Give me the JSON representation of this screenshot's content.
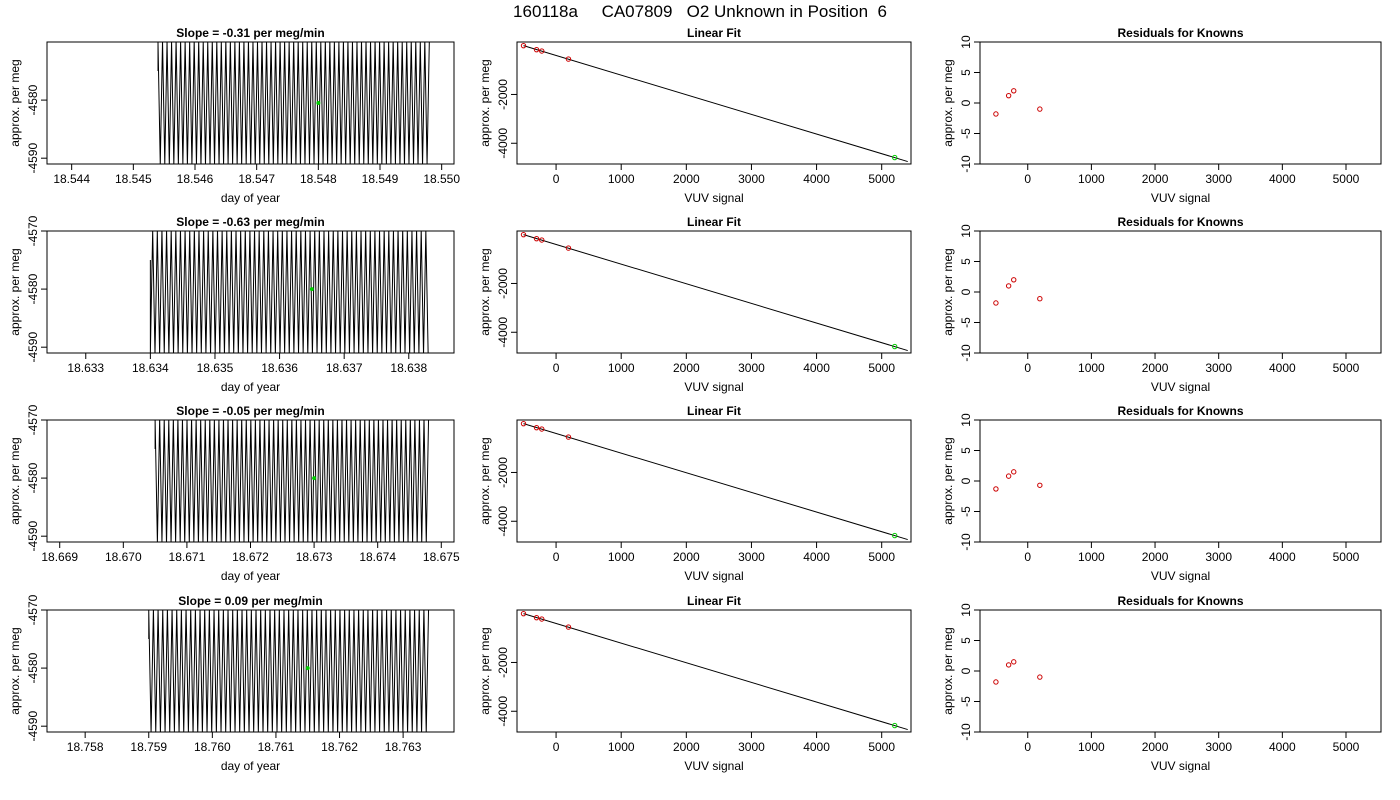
{
  "figure_title": "160118a     CA07809   O2 Unknown in Position  6",
  "colors": {
    "trace": "#000000",
    "marker_red": "#cc0000",
    "marker_green": "#00cc00",
    "axis": "#000000"
  },
  "chart_data": [
    {
      "type": "line",
      "panel": "time-series-1",
      "title": "Slope =  -0.31  per meg/min",
      "xlabel": "day of year",
      "ylabel": "approx. per meg",
      "xlim": [
        18.5436,
        18.5502
      ],
      "ylim": [
        -4591,
        -4570
      ],
      "xticks": [
        18.544,
        18.545,
        18.546,
        18.547,
        18.548,
        18.549,
        18.55
      ],
      "xtick_labels": [
        "18.544",
        "18.545",
        "18.546",
        "18.547",
        "18.548",
        "18.549",
        "18.550"
      ],
      "yticks": [
        -4580,
        -4590
      ],
      "ytick_labels": [
        "-4580",
        "-4590"
      ],
      "trace": {
        "x_start": 18.5454,
        "x_end": 18.5498,
        "y_min": -4591,
        "y_max": -4570,
        "cycles": 60,
        "start_offset": 0.45
      },
      "highlight_point": {
        "x": 18.548,
        "y": -4580.5
      }
    },
    {
      "type": "scatter",
      "panel": "linear-fit-1",
      "title": "Linear Fit",
      "xlabel": "VUV signal",
      "ylabel": "approx. per meg",
      "xlim": [
        -600,
        5450
      ],
      "ylim": [
        -4850,
        150
      ],
      "xticks": [
        0,
        1000,
        2000,
        3000,
        4000,
        5000
      ],
      "xtick_labels": [
        "0",
        "1000",
        "2000",
        "3000",
        "4000",
        "5000"
      ],
      "yticks": [
        -2000,
        -4000
      ],
      "ytick_labels": [
        "-2000",
        "-4000"
      ],
      "fit_line": {
        "x": [
          -500,
          5400
        ],
        "y": [
          0,
          -4750
        ]
      },
      "knowns": {
        "x": [
          -500,
          -300,
          -220,
          190
        ],
        "y": [
          0,
          -165,
          -220,
          -550
        ]
      },
      "unknown": {
        "x": 5200,
        "y": -4585
      }
    },
    {
      "type": "scatter",
      "panel": "residuals-1",
      "title": "Residuals for Knowns",
      "xlabel": "VUV signal",
      "ylabel": "approx. per meg",
      "xlim": [
        -750,
        5550
      ],
      "ylim": [
        -10,
        10
      ],
      "xticks": [
        0,
        1000,
        2000,
        3000,
        4000,
        5000
      ],
      "xtick_labels": [
        "0",
        "1000",
        "2000",
        "3000",
        "4000",
        "5000"
      ],
      "yticks": [
        10,
        5,
        0,
        -5,
        -10
      ],
      "ytick_labels": [
        "10",
        "5",
        "0",
        "-5",
        "-10"
      ],
      "x": [
        -500,
        -300,
        -220,
        190
      ],
      "y": [
        -1.8,
        1.2,
        2.0,
        -1.0
      ]
    },
    {
      "type": "line",
      "panel": "time-series-2",
      "title": "Slope =  -0.63  per meg/min",
      "xlabel": "day of year",
      "ylabel": "approx. per meg",
      "xlim": [
        18.6324,
        18.6387
      ],
      "ylim": [
        -4591,
        -4570
      ],
      "xticks": [
        18.633,
        18.634,
        18.635,
        18.636,
        18.637,
        18.638
      ],
      "xtick_labels": [
        "18.633",
        "18.634",
        "18.635",
        "18.636",
        "18.637",
        "18.638"
      ],
      "yticks": [
        -4570,
        -4580,
        -4590
      ],
      "ytick_labels": [
        "-4570",
        "-4580",
        "-4590"
      ],
      "trace": {
        "x_start": 18.634,
        "x_end": 18.6383,
        "y_min": -4591,
        "y_max": -4570,
        "cycles": 60,
        "start_offset": 0.6
      },
      "highlight_point": {
        "x": 18.6365,
        "y": -4580
      }
    },
    {
      "type": "scatter",
      "panel": "linear-fit-2",
      "title": "Linear Fit",
      "xlabel": "VUV signal",
      "ylabel": "approx. per meg",
      "xlim": [
        -600,
        5450
      ],
      "ylim": [
        -4850,
        150
      ],
      "xticks": [
        0,
        1000,
        2000,
        3000,
        4000,
        5000
      ],
      "xtick_labels": [
        "0",
        "1000",
        "2000",
        "3000",
        "4000",
        "5000"
      ],
      "yticks": [
        -2000,
        -4000
      ],
      "ytick_labels": [
        "-2000",
        "-4000"
      ],
      "fit_line": {
        "x": [
          -500,
          5400
        ],
        "y": [
          0,
          -4750
        ]
      },
      "knowns": {
        "x": [
          -500,
          -300,
          -220,
          190
        ],
        "y": [
          0,
          -165,
          -220,
          -550
        ]
      },
      "unknown": {
        "x": 5200,
        "y": -4585
      }
    },
    {
      "type": "scatter",
      "panel": "residuals-2",
      "title": "Residuals for Knowns",
      "xlabel": "VUV signal",
      "ylabel": "approx. per meg",
      "xlim": [
        -750,
        5550
      ],
      "ylim": [
        -10,
        10
      ],
      "xticks": [
        0,
        1000,
        2000,
        3000,
        4000,
        5000
      ],
      "xtick_labels": [
        "0",
        "1000",
        "2000",
        "3000",
        "4000",
        "5000"
      ],
      "yticks": [
        10,
        5,
        0,
        -5,
        -10
      ],
      "ytick_labels": [
        "10",
        "5",
        "0",
        "-5",
        "-10"
      ],
      "x": [
        -500,
        -300,
        -220,
        190
      ],
      "y": [
        -1.8,
        1.0,
        2.0,
        -1.1
      ]
    },
    {
      "type": "line",
      "panel": "time-series-3",
      "title": "Slope =  -0.05  per meg/min",
      "xlabel": "day of year",
      "ylabel": "approx. per meg",
      "xlim": [
        18.6688,
        18.6752
      ],
      "ylim": [
        -4591,
        -4570
      ],
      "xticks": [
        18.669,
        18.67,
        18.671,
        18.672,
        18.673,
        18.674,
        18.675
      ],
      "xtick_labels": [
        "18.669",
        "18.670",
        "18.671",
        "18.672",
        "18.673",
        "18.674",
        "18.675"
      ],
      "yticks": [
        -4570,
        -4580,
        -4590
      ],
      "ytick_labels": [
        "-4570",
        "-4580",
        "-4590"
      ],
      "trace": {
        "x_start": 18.6705,
        "x_end": 18.6748,
        "y_min": -4591,
        "y_max": -4570,
        "cycles": 60,
        "start_offset": 0.2
      },
      "highlight_point": {
        "x": 18.673,
        "y": -4580
      }
    },
    {
      "type": "scatter",
      "panel": "linear-fit-3",
      "title": "Linear Fit",
      "xlabel": "VUV signal",
      "ylabel": "approx. per meg",
      "xlim": [
        -600,
        5450
      ],
      "ylim": [
        -4850,
        150
      ],
      "xticks": [
        0,
        1000,
        2000,
        3000,
        4000,
        5000
      ],
      "xtick_labels": [
        "0",
        "1000",
        "2000",
        "3000",
        "4000",
        "5000"
      ],
      "yticks": [
        -2000,
        -4000
      ],
      "ytick_labels": [
        "-2000",
        "-4000"
      ],
      "fit_line": {
        "x": [
          -500,
          5400
        ],
        "y": [
          0,
          -4750
        ]
      },
      "knowns": {
        "x": [
          -500,
          -300,
          -220,
          190
        ],
        "y": [
          0,
          -165,
          -220,
          -550
        ]
      },
      "unknown": {
        "x": 5200,
        "y": -4585
      }
    },
    {
      "type": "scatter",
      "panel": "residuals-3",
      "title": "Residuals for Knowns",
      "xlabel": "VUV signal",
      "ylabel": "approx. per meg",
      "xlim": [
        -750,
        5550
      ],
      "ylim": [
        -10,
        10
      ],
      "xticks": [
        0,
        1000,
        2000,
        3000,
        4000,
        5000
      ],
      "xtick_labels": [
        "0",
        "1000",
        "2000",
        "3000",
        "4000",
        "5000"
      ],
      "yticks": [
        10,
        5,
        0,
        -5,
        -10
      ],
      "ytick_labels": [
        "10",
        "5",
        "0",
        "-5",
        "-10"
      ],
      "x": [
        -500,
        -300,
        -220,
        190
      ],
      "y": [
        -1.3,
        0.8,
        1.5,
        -0.7
      ]
    },
    {
      "type": "line",
      "panel": "time-series-4",
      "title": "Slope =  0.09  per meg/min",
      "xlabel": "day of year",
      "ylabel": "approx. per meg",
      "xlim": [
        18.7574,
        18.7638
      ],
      "ylim": [
        -4591,
        -4570
      ],
      "xticks": [
        18.758,
        18.759,
        18.76,
        18.761,
        18.762,
        18.763
      ],
      "xtick_labels": [
        "18.758",
        "18.759",
        "18.760",
        "18.761",
        "18.762",
        "18.763"
      ],
      "yticks": [
        -4570,
        -4580,
        -4590
      ],
      "ytick_labels": [
        "-4570",
        "-4580",
        "-4590"
      ],
      "trace": {
        "x_start": 18.759,
        "x_end": 18.7634,
        "y_min": -4591,
        "y_max": -4570,
        "cycles": 60,
        "start_offset": 0.35
      },
      "highlight_point": {
        "x": 18.7615,
        "y": -4580
      }
    },
    {
      "type": "scatter",
      "panel": "linear-fit-4",
      "title": "Linear Fit",
      "xlabel": "VUV signal",
      "ylabel": "approx. per meg",
      "xlim": [
        -600,
        5450
      ],
      "ylim": [
        -4850,
        150
      ],
      "xticks": [
        0,
        1000,
        2000,
        3000,
        4000,
        5000
      ],
      "xtick_labels": [
        "0",
        "1000",
        "2000",
        "3000",
        "4000",
        "5000"
      ],
      "yticks": [
        -2000,
        -4000
      ],
      "ytick_labels": [
        "-2000",
        "-4000"
      ],
      "fit_line": {
        "x": [
          -500,
          5400
        ],
        "y": [
          0,
          -4750
        ]
      },
      "knowns": {
        "x": [
          -500,
          -300,
          -220,
          190
        ],
        "y": [
          0,
          -165,
          -220,
          -550
        ]
      },
      "unknown": {
        "x": 5200,
        "y": -4585
      }
    },
    {
      "type": "scatter",
      "panel": "residuals-4",
      "title": "Residuals for Knowns",
      "xlabel": "VUV signal",
      "ylabel": "approx. per meg",
      "xlim": [
        -750,
        5550
      ],
      "ylim": [
        -10,
        10
      ],
      "xticks": [
        0,
        1000,
        2000,
        3000,
        4000,
        5000
      ],
      "xtick_labels": [
        "0",
        "1000",
        "2000",
        "3000",
        "4000",
        "5000"
      ],
      "yticks": [
        10,
        5,
        0,
        -5,
        -10
      ],
      "ytick_labels": [
        "10",
        "5",
        "0",
        "-5",
        "-10"
      ],
      "x": [
        -500,
        -300,
        -220,
        190
      ],
      "y": [
        -1.8,
        1.0,
        1.5,
        -1.0
      ]
    }
  ]
}
